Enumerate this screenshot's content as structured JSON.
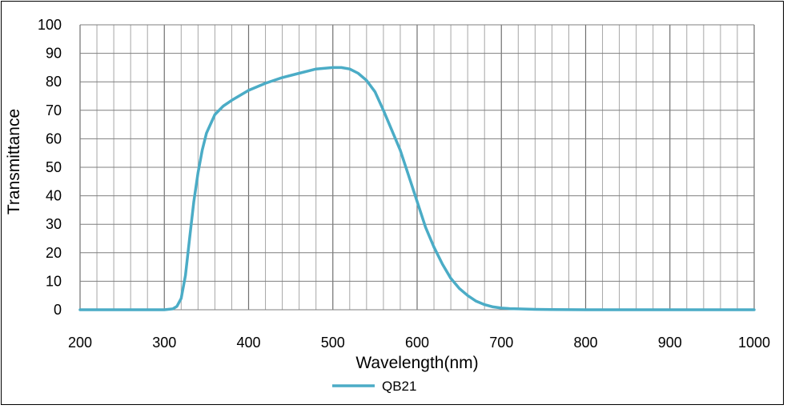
{
  "chart_data": {
    "type": "line",
    "xlabel": "Wavelength(nm)",
    "ylabel": "Transmittance",
    "xlim": [
      200,
      1000
    ],
    "ylim": [
      0,
      100
    ],
    "x_ticks": [
      200,
      300,
      400,
      500,
      600,
      700,
      800,
      900,
      1000
    ],
    "y_ticks": [
      0,
      10,
      20,
      30,
      40,
      50,
      60,
      70,
      80,
      90,
      100
    ],
    "grid": true,
    "legend": "bottom-center",
    "line_color": "#4bacc6",
    "series": [
      {
        "name": "QB21",
        "x": [
          200,
          300,
          310,
          315,
          320,
          325,
          330,
          335,
          340,
          345,
          350,
          360,
          370,
          380,
          400,
          420,
          440,
          460,
          480,
          500,
          510,
          520,
          530,
          540,
          550,
          560,
          570,
          580,
          590,
          600,
          610,
          620,
          630,
          640,
          650,
          660,
          670,
          680,
          690,
          700,
          710,
          720,
          740,
          760,
          800,
          900,
          1000
        ],
        "y": [
          0,
          0,
          0.3,
          1.2,
          4,
          12,
          25,
          38,
          48,
          56,
          62,
          68.5,
          71.5,
          73.5,
          77,
          79.5,
          81.5,
          83,
          84.5,
          85,
          85,
          84.5,
          83,
          80.5,
          76.5,
          70,
          63,
          56,
          47,
          38,
          29,
          22,
          16,
          11,
          7.5,
          5,
          3,
          1.8,
          1,
          0.6,
          0.4,
          0.3,
          0.15,
          0.05,
          0,
          0,
          0
        ]
      }
    ]
  }
}
